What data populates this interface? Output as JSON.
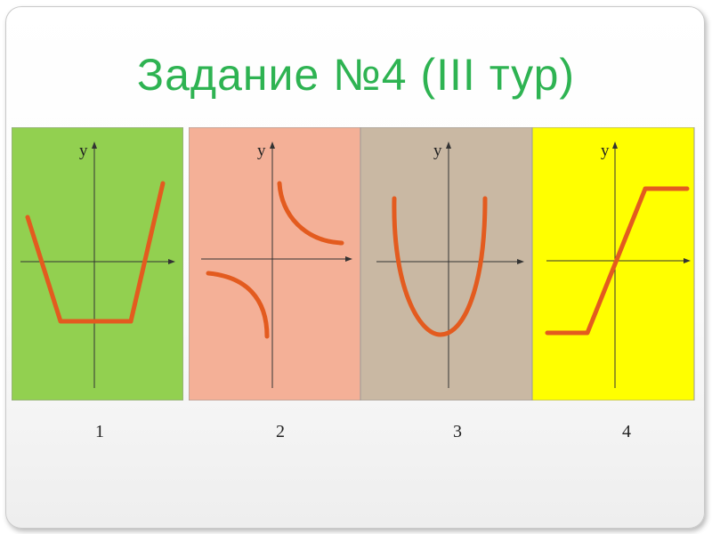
{
  "title": "Задание №4 (III тур)",
  "panels": [
    {
      "number": "1",
      "axis_label": "y",
      "bg_color": "#92d050",
      "curve_color": "#e35b1f",
      "curve": "trapezoid-well"
    },
    {
      "number": "2",
      "axis_label": "y",
      "bg_color": "#f4b097",
      "curve_color": "#e35b1f",
      "curve": "hyperbola"
    },
    {
      "number": "3",
      "axis_label": "y",
      "bg_color": "#c9b8a3",
      "curve_color": "#e35b1f",
      "curve": "parabola"
    },
    {
      "number": "4",
      "axis_label": "y",
      "bg_color": "#ffff00",
      "curve_color": "#e35b1f",
      "curve": "saturated-ramp"
    }
  ]
}
